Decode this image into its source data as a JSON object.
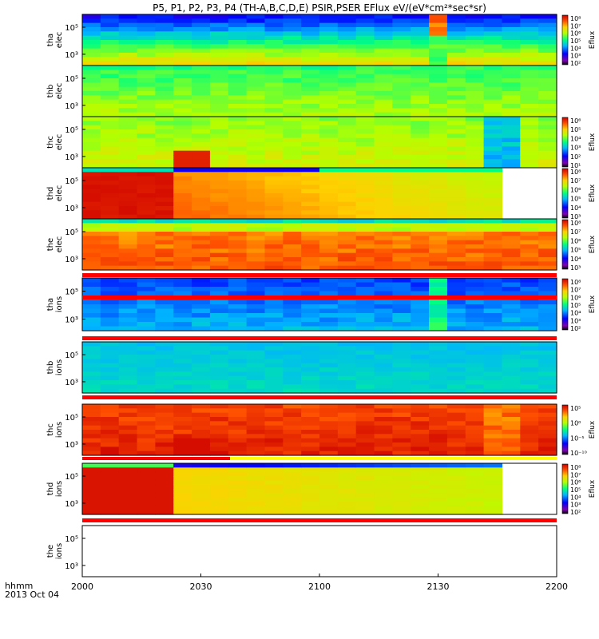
{
  "title": "P5, P1, P2, P3, P4 (TH-A,B,C,D,E) PSIR,PSER EFlux eV/(eV*cm²*sec*sr)",
  "time_label": {
    "line1": "hhmm",
    "line2": "2013 Oct 04"
  },
  "colors": {
    "background": "#ffffff",
    "axis": "#000000",
    "flag": "#ff0000"
  },
  "chart_data": {
    "type": "heatmap",
    "x_ticks": [
      "2000",
      "2030",
      "2100",
      "2130",
      "2200"
    ],
    "panels": [
      {
        "id": "tha-elec",
        "label1": "tha",
        "label2": "elec",
        "y_ticks": [
          "10⁵",
          "10³"
        ],
        "colorbar": {
          "ticks": [
            "10⁸",
            "10⁷",
            "10⁶",
            "10⁵",
            "10⁴",
            "10³",
            "10²"
          ],
          "label": "Eflux"
        }
      },
      {
        "id": "thb-elec",
        "label1": "thb",
        "label2": "elec",
        "y_ticks": [
          "10⁵",
          "10³"
        ]
      },
      {
        "id": "thc-elec",
        "label1": "thc",
        "label2": "elec",
        "y_ticks": [
          "10⁵",
          "10³"
        ],
        "colorbar": {
          "ticks": [
            "10⁶",
            "10⁵",
            "10⁴",
            "10³",
            "10²",
            "10¹"
          ],
          "label": "Eflux"
        }
      },
      {
        "id": "thd-elec",
        "label1": "thd",
        "label2": "elec",
        "y_ticks": [
          "10⁵",
          "10³"
        ],
        "colorbar": {
          "ticks": [
            "10⁸",
            "10⁷",
            "10⁶",
            "10⁵",
            "10⁴",
            "10³"
          ],
          "label": "Eflux"
        }
      },
      {
        "id": "the-elec",
        "label1": "the",
        "label2": "elec",
        "y_ticks": [
          "10⁵",
          "10³"
        ],
        "colorbar": {
          "ticks": [
            "10⁸",
            "10⁷",
            "10⁶",
            "10⁵",
            "10⁴",
            "10³"
          ],
          "label": "Eflux"
        }
      },
      {
        "id": "tha-ions",
        "label1": "tha",
        "label2": "ions",
        "y_ticks": [
          "10⁵",
          "10³"
        ],
        "colorbar": {
          "ticks": [
            "10⁸",
            "10⁷",
            "10⁶",
            "10⁵",
            "10⁴",
            "10³",
            "10²"
          ],
          "label": "Eflux"
        }
      },
      {
        "id": "thb-ions",
        "label1": "thb",
        "label2": "ions",
        "y_ticks": [
          "10⁵",
          "10³"
        ]
      },
      {
        "id": "thc-ions",
        "label1": "thc",
        "label2": "ions",
        "y_ticks": [
          "10⁵",
          "10³"
        ],
        "colorbar": {
          "ticks": [
            "10⁵",
            "10⁰",
            "10⁻⁵",
            "10⁻¹⁰"
          ],
          "label": "Eflux"
        }
      },
      {
        "id": "thd-ions",
        "label1": "thd",
        "label2": "ions",
        "y_ticks": [
          "10⁵",
          "10³"
        ],
        "colorbar": {
          "ticks": [
            "10⁸",
            "10⁷",
            "10⁶",
            "10⁵",
            "10⁴",
            "10³",
            "10²"
          ],
          "label": "Eflux"
        }
      },
      {
        "id": "the-ions",
        "label1": "the",
        "label2": "ions",
        "y_ticks": [
          "10⁵",
          "10³"
        ]
      }
    ]
  }
}
